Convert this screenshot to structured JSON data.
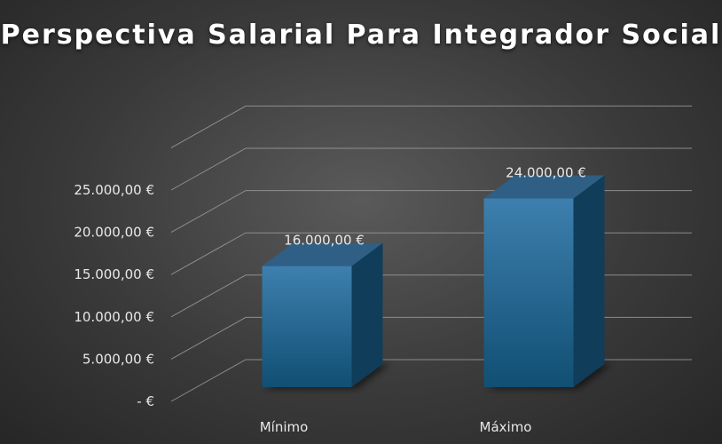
{
  "chart_data": {
    "type": "bar",
    "title": "Perspectiva Salarial Para Integrador Social",
    "categories": [
      "Mínimo",
      "Máximo"
    ],
    "values": [
      16000,
      24000
    ],
    "data_labels": [
      "16.000,00 €",
      "24.000,00 €"
    ],
    "y_ticks": [
      0,
      5000,
      10000,
      15000,
      20000,
      25000
    ],
    "y_tick_labels": [
      "-  €",
      "5.000,00 €",
      "10.000,00 €",
      "15.000,00 €",
      "20.000,00 €",
      "25.000,00 €"
    ],
    "ylim": [
      0,
      30000
    ],
    "grid": true,
    "legend": "none",
    "style": "3d-column",
    "colors": {
      "bar_front_top": "#3d7fae",
      "bar_front_bottom": "#114f73",
      "bar_side": "#0f3d5a",
      "bar_top": "#2f5f84",
      "gridline": "#9a9a9a"
    }
  }
}
